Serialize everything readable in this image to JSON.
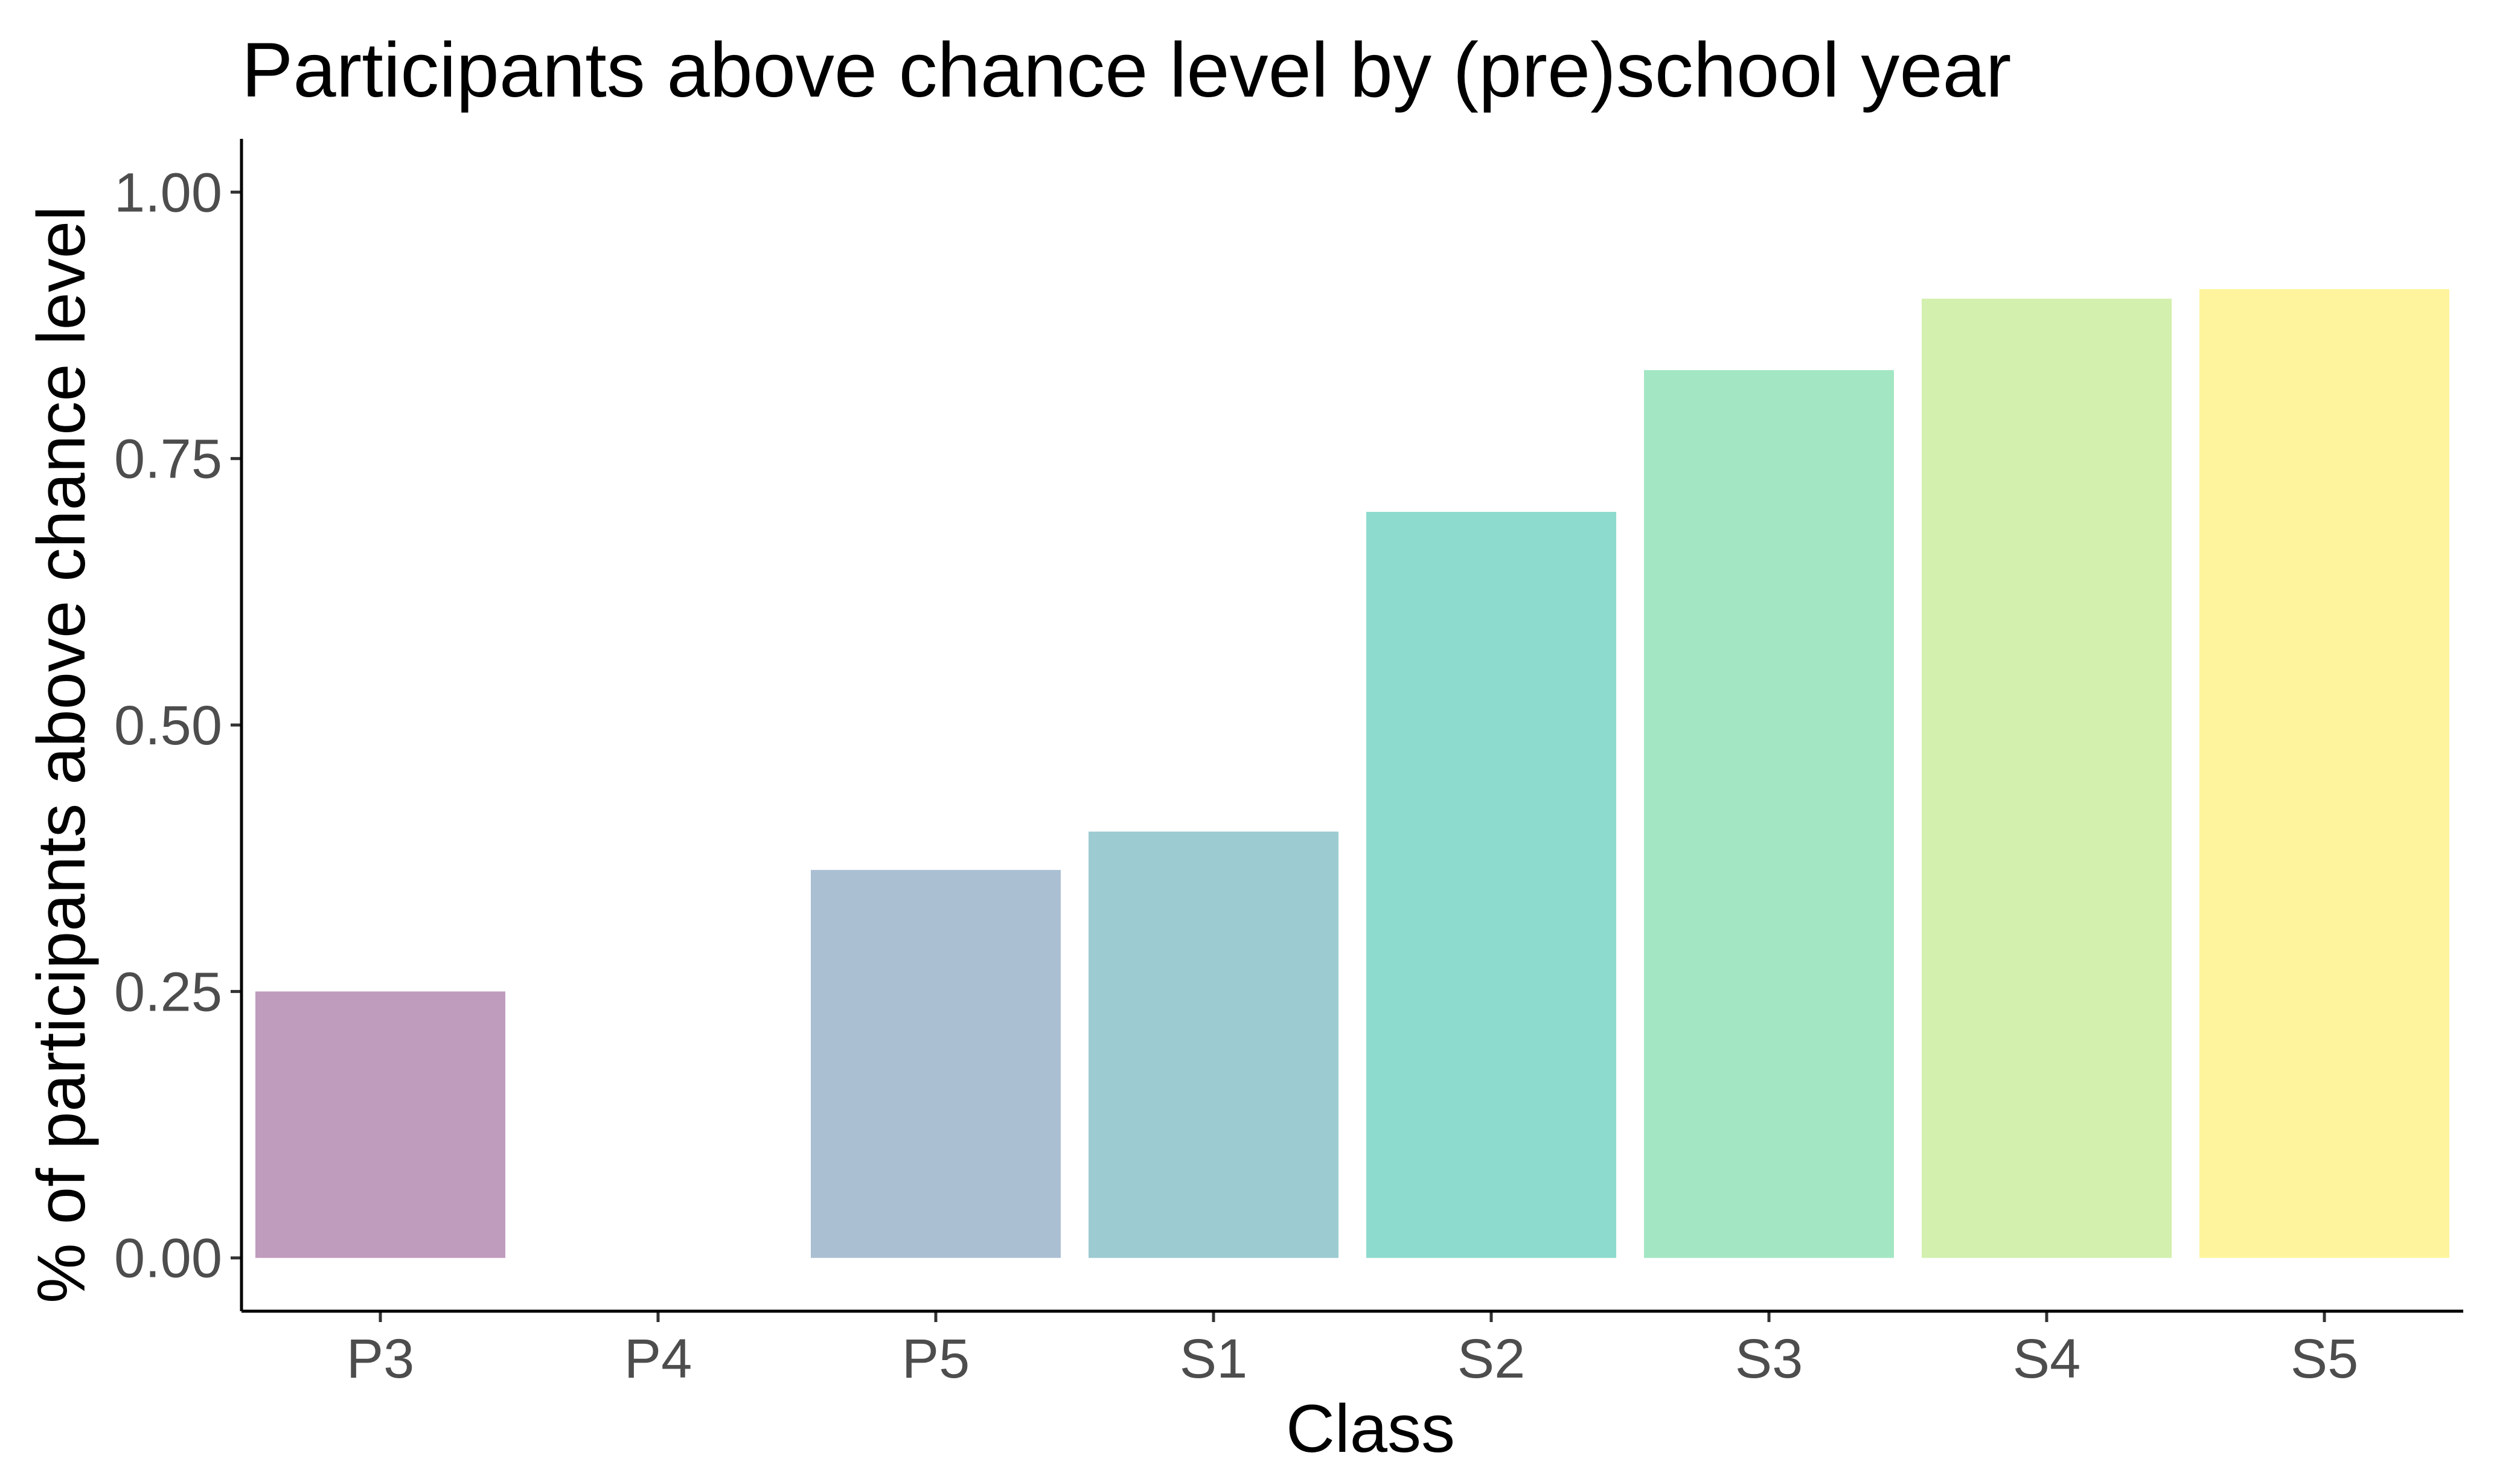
{
  "chart_data": {
    "type": "bar",
    "title": "Participants above chance level by (pre)school year",
    "xlabel": "Class",
    "ylabel": "% of participants above chance level",
    "categories": [
      "P3",
      "P4",
      "P5",
      "S1",
      "S2",
      "S3",
      "S4",
      "S5"
    ],
    "values": [
      0.25,
      0.0,
      0.364,
      0.4,
      0.7,
      0.833,
      0.9,
      0.909
    ],
    "colors": [
      "#bf9bbd",
      "#ffffff",
      "#abbfd3",
      "#9ccbd1",
      "#8ddbce",
      "#a3e6c3",
      "#d3f0ae",
      "#fef49e"
    ],
    "ylim": [
      -0.05,
      1.05
    ],
    "yticks": [
      0.0,
      0.25,
      0.5,
      0.75,
      1.0
    ],
    "ytick_labels": [
      "0.00",
      "0.25",
      "0.50",
      "0.75",
      "1.00"
    ],
    "grid": false,
    "legend": "none"
  }
}
